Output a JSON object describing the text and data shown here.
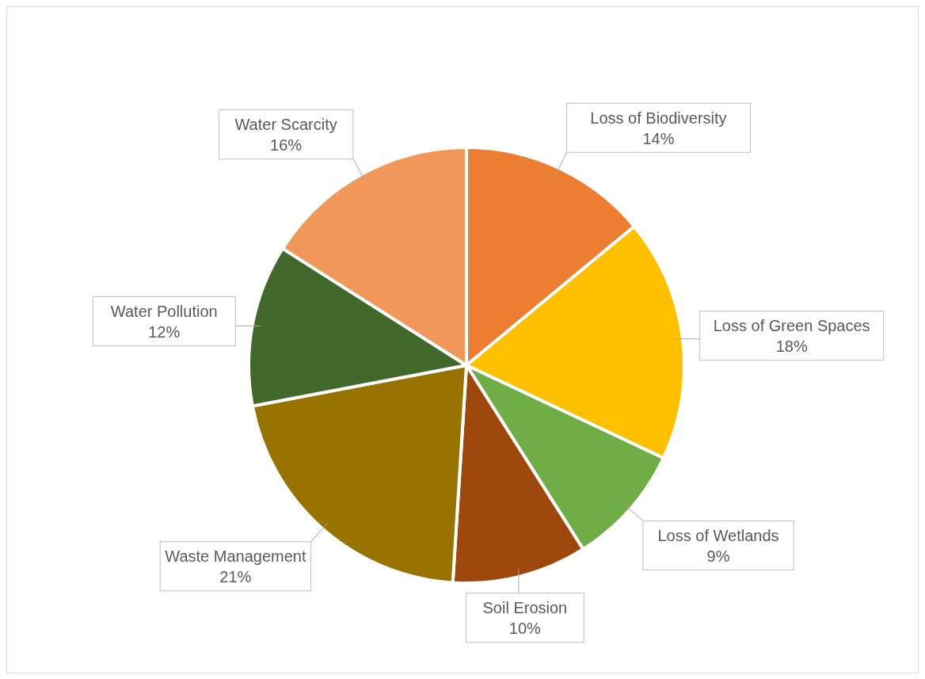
{
  "chart_data": {
    "type": "pie",
    "categories": [
      "Loss of Biodiversity",
      "Loss of Green Spaces",
      "Loss of Wetlands",
      "Soil Erosion",
      "Waste Management",
      "Water Pollution",
      "Water Scarcity"
    ],
    "values": [
      14,
      18,
      9,
      10,
      21,
      12,
      16
    ],
    "value_labels": [
      "14%",
      "18%",
      "9%",
      "10%",
      "21%",
      "12%",
      "16%"
    ],
    "colors": [
      "#ed7d31",
      "#ffc000",
      "#70ad47",
      "#9e480e",
      "#997300",
      "#43682b",
      "#f1975a"
    ],
    "legend": false
  }
}
